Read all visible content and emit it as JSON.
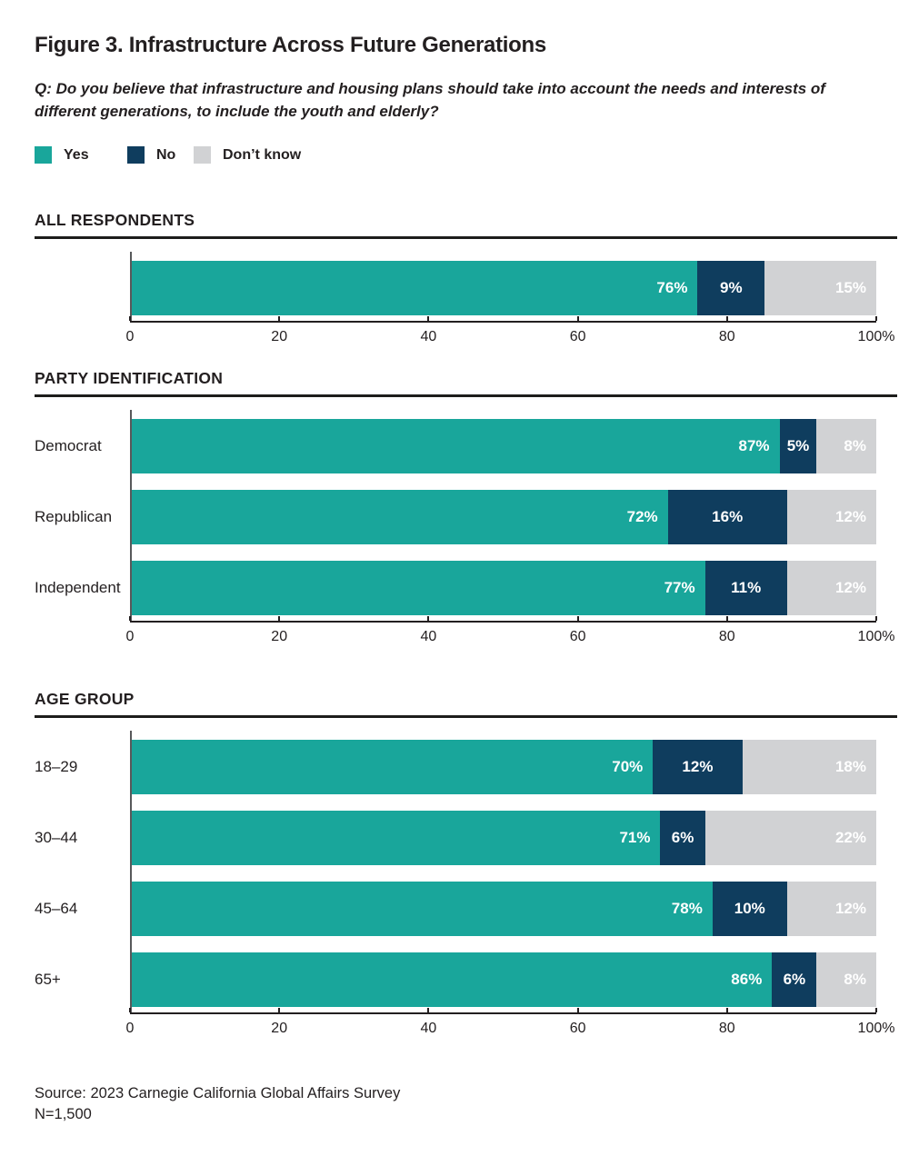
{
  "figure": {
    "title": "Figure 3. Infrastructure Across Future Generations",
    "question": "Q: Do you believe that infrastructure and housing plans should take into account the needs and interests of different generations, to include the youth and elderly?",
    "source": "Source: 2023 Carnegie California Global Affairs Survey",
    "sample_size": "N=1,500"
  },
  "colors": {
    "yes": "#19A69B",
    "no": "#0F3D5E",
    "dont_know": "#D1D2D4",
    "text": "#231F20",
    "axis": "#231F20",
    "spine": "#58595B"
  },
  "chart_data": {
    "type": "bar",
    "orientation": "horizontal",
    "stacked": true,
    "unit": "%",
    "series_names": [
      "Yes",
      "No",
      "Don’t know"
    ],
    "series_colors": [
      "#19A69B",
      "#0F3D5E",
      "#D1D2D4"
    ],
    "xlim": [
      0,
      100
    ],
    "x_ticks": [
      0,
      20,
      40,
      60,
      80,
      100
    ],
    "x_tick_labels": [
      "0",
      "20",
      "40",
      "60",
      "80",
      "100%"
    ],
    "legend_position": "top",
    "grid": false,
    "groups": [
      {
        "heading": "ALL RESPONDENTS",
        "rows": [
          {
            "label": "",
            "values": [
              76,
              9,
              15
            ]
          }
        ]
      },
      {
        "heading": "PARTY IDENTIFICATION",
        "rows": [
          {
            "label": "Democrat",
            "values": [
              87,
              5,
              8
            ]
          },
          {
            "label": "Republican",
            "values": [
              72,
              16,
              12
            ]
          },
          {
            "label": "Independent",
            "values": [
              77,
              11,
              12
            ]
          }
        ]
      },
      {
        "heading": "AGE GROUP",
        "rows": [
          {
            "label": "18–29",
            "values": [
              70,
              12,
              18
            ]
          },
          {
            "label": "30–44",
            "values": [
              71,
              6,
              22
            ]
          },
          {
            "label": "45–64",
            "values": [
              78,
              10,
              12
            ]
          },
          {
            "label": "65+",
            "values": [
              86,
              6,
              8
            ]
          }
        ]
      }
    ]
  }
}
